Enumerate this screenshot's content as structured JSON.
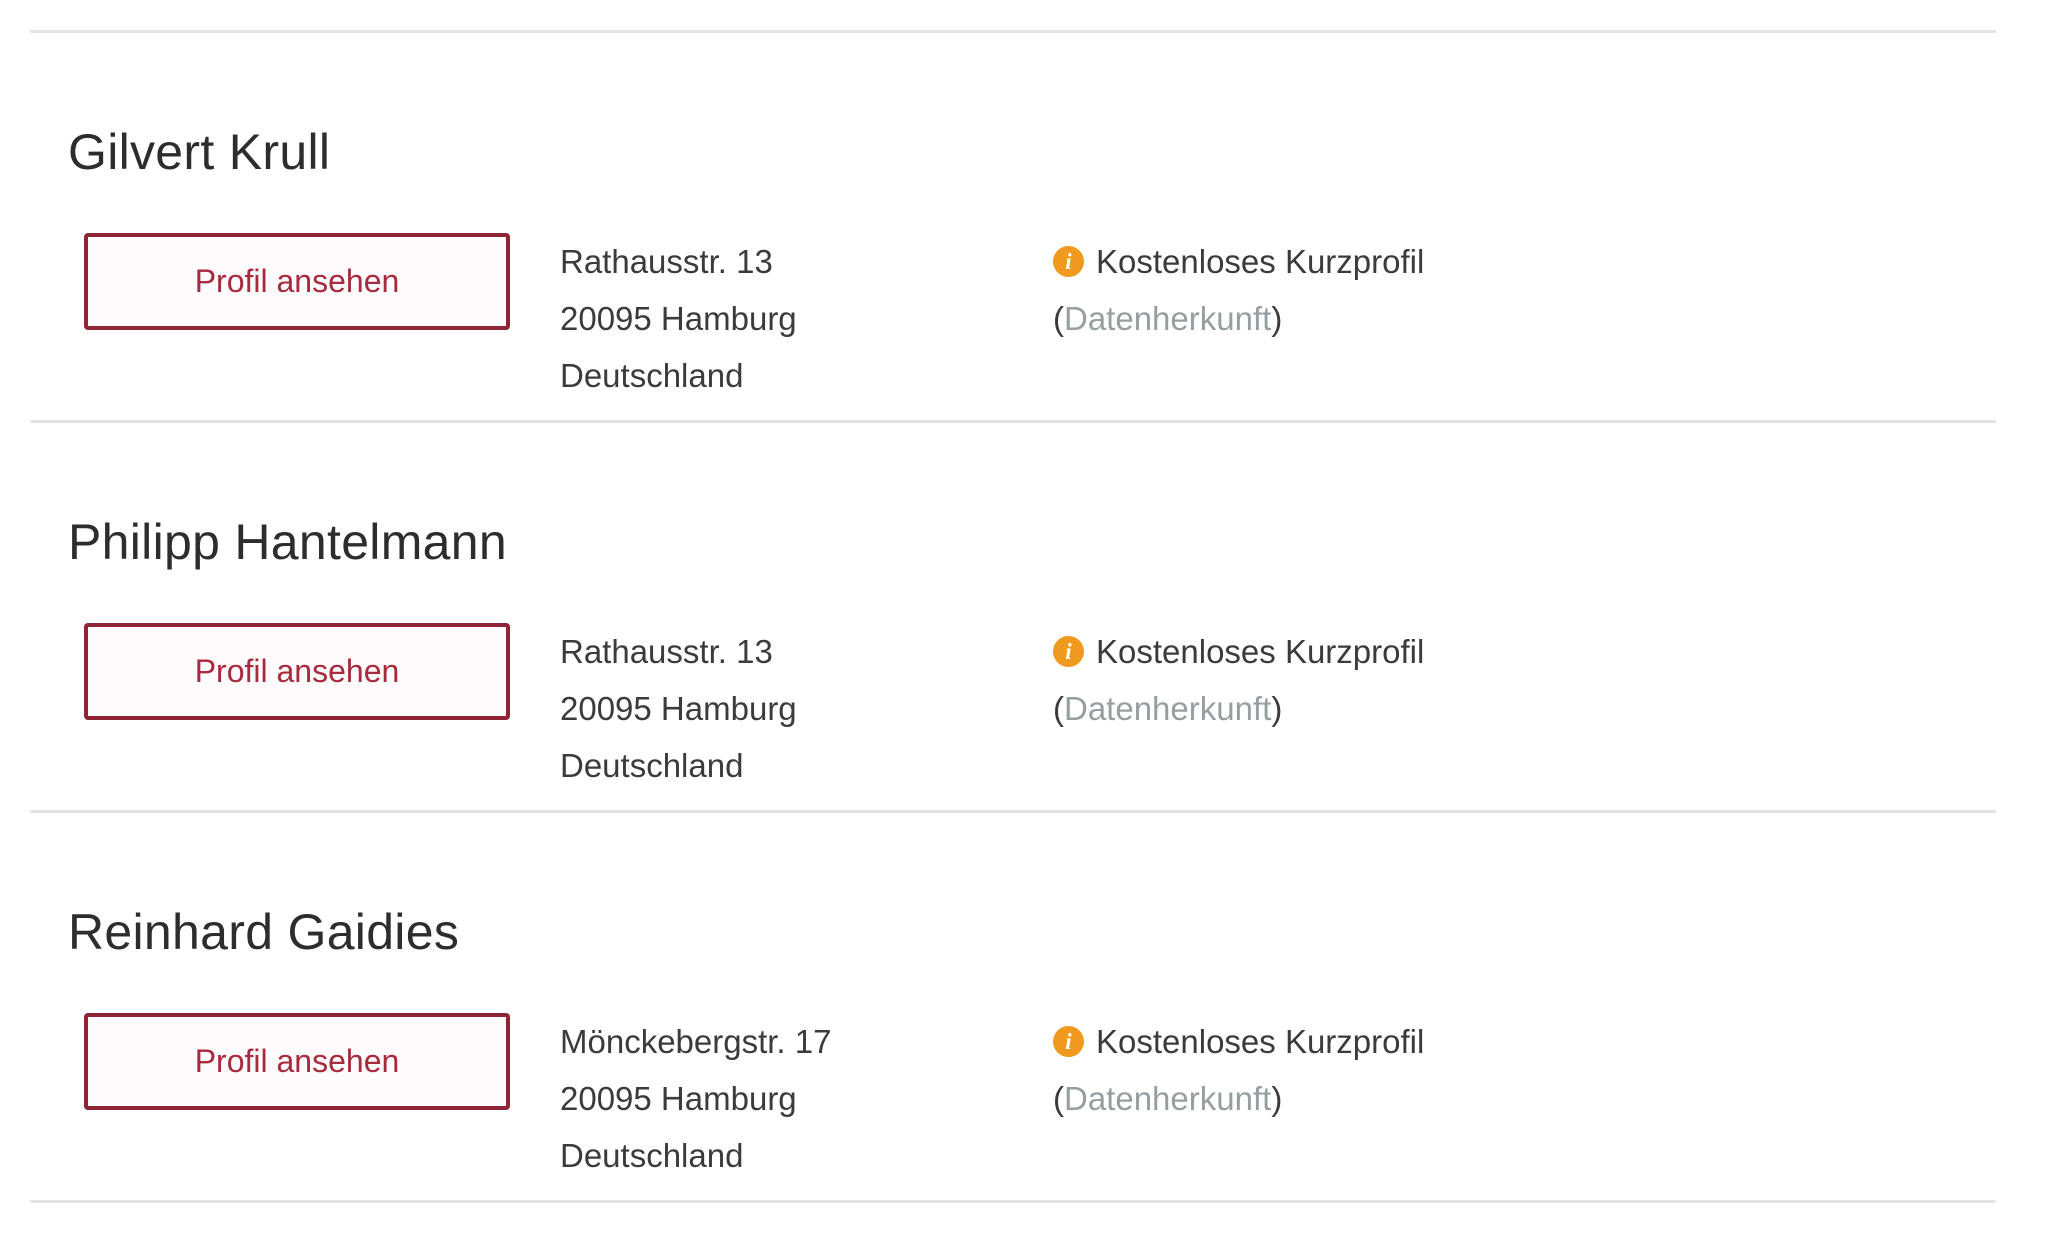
{
  "labels": {
    "profile_button": "Profil ansehen",
    "short_profile": "Kostenloses Kurzprofil",
    "data_source_link": "Datenherkunft",
    "paren_open": "(",
    "paren_close": ")",
    "info_icon_glyph": "i"
  },
  "colors": {
    "button_border": "#8e2434",
    "button_text": "#a72a3e",
    "info_icon": "#f0991f",
    "muted_link": "#969ea2",
    "divider": "#e3e3e3",
    "heading_text": "#2d2d2d",
    "body_text": "#3b3b3b"
  },
  "entries": [
    {
      "name": "Gilvert Krull",
      "address": {
        "street": "Rathausstr. 13",
        "city": "20095 Hamburg",
        "country": "Deutschland"
      }
    },
    {
      "name": "Philipp Hantelmann",
      "address": {
        "street": "Rathausstr. 13",
        "city": "20095 Hamburg",
        "country": "Deutschland"
      }
    },
    {
      "name": "Reinhard Gaidies",
      "address": {
        "street": "Mönckebergstr. 17",
        "city": "20095 Hamburg",
        "country": "Deutschland"
      }
    }
  ]
}
